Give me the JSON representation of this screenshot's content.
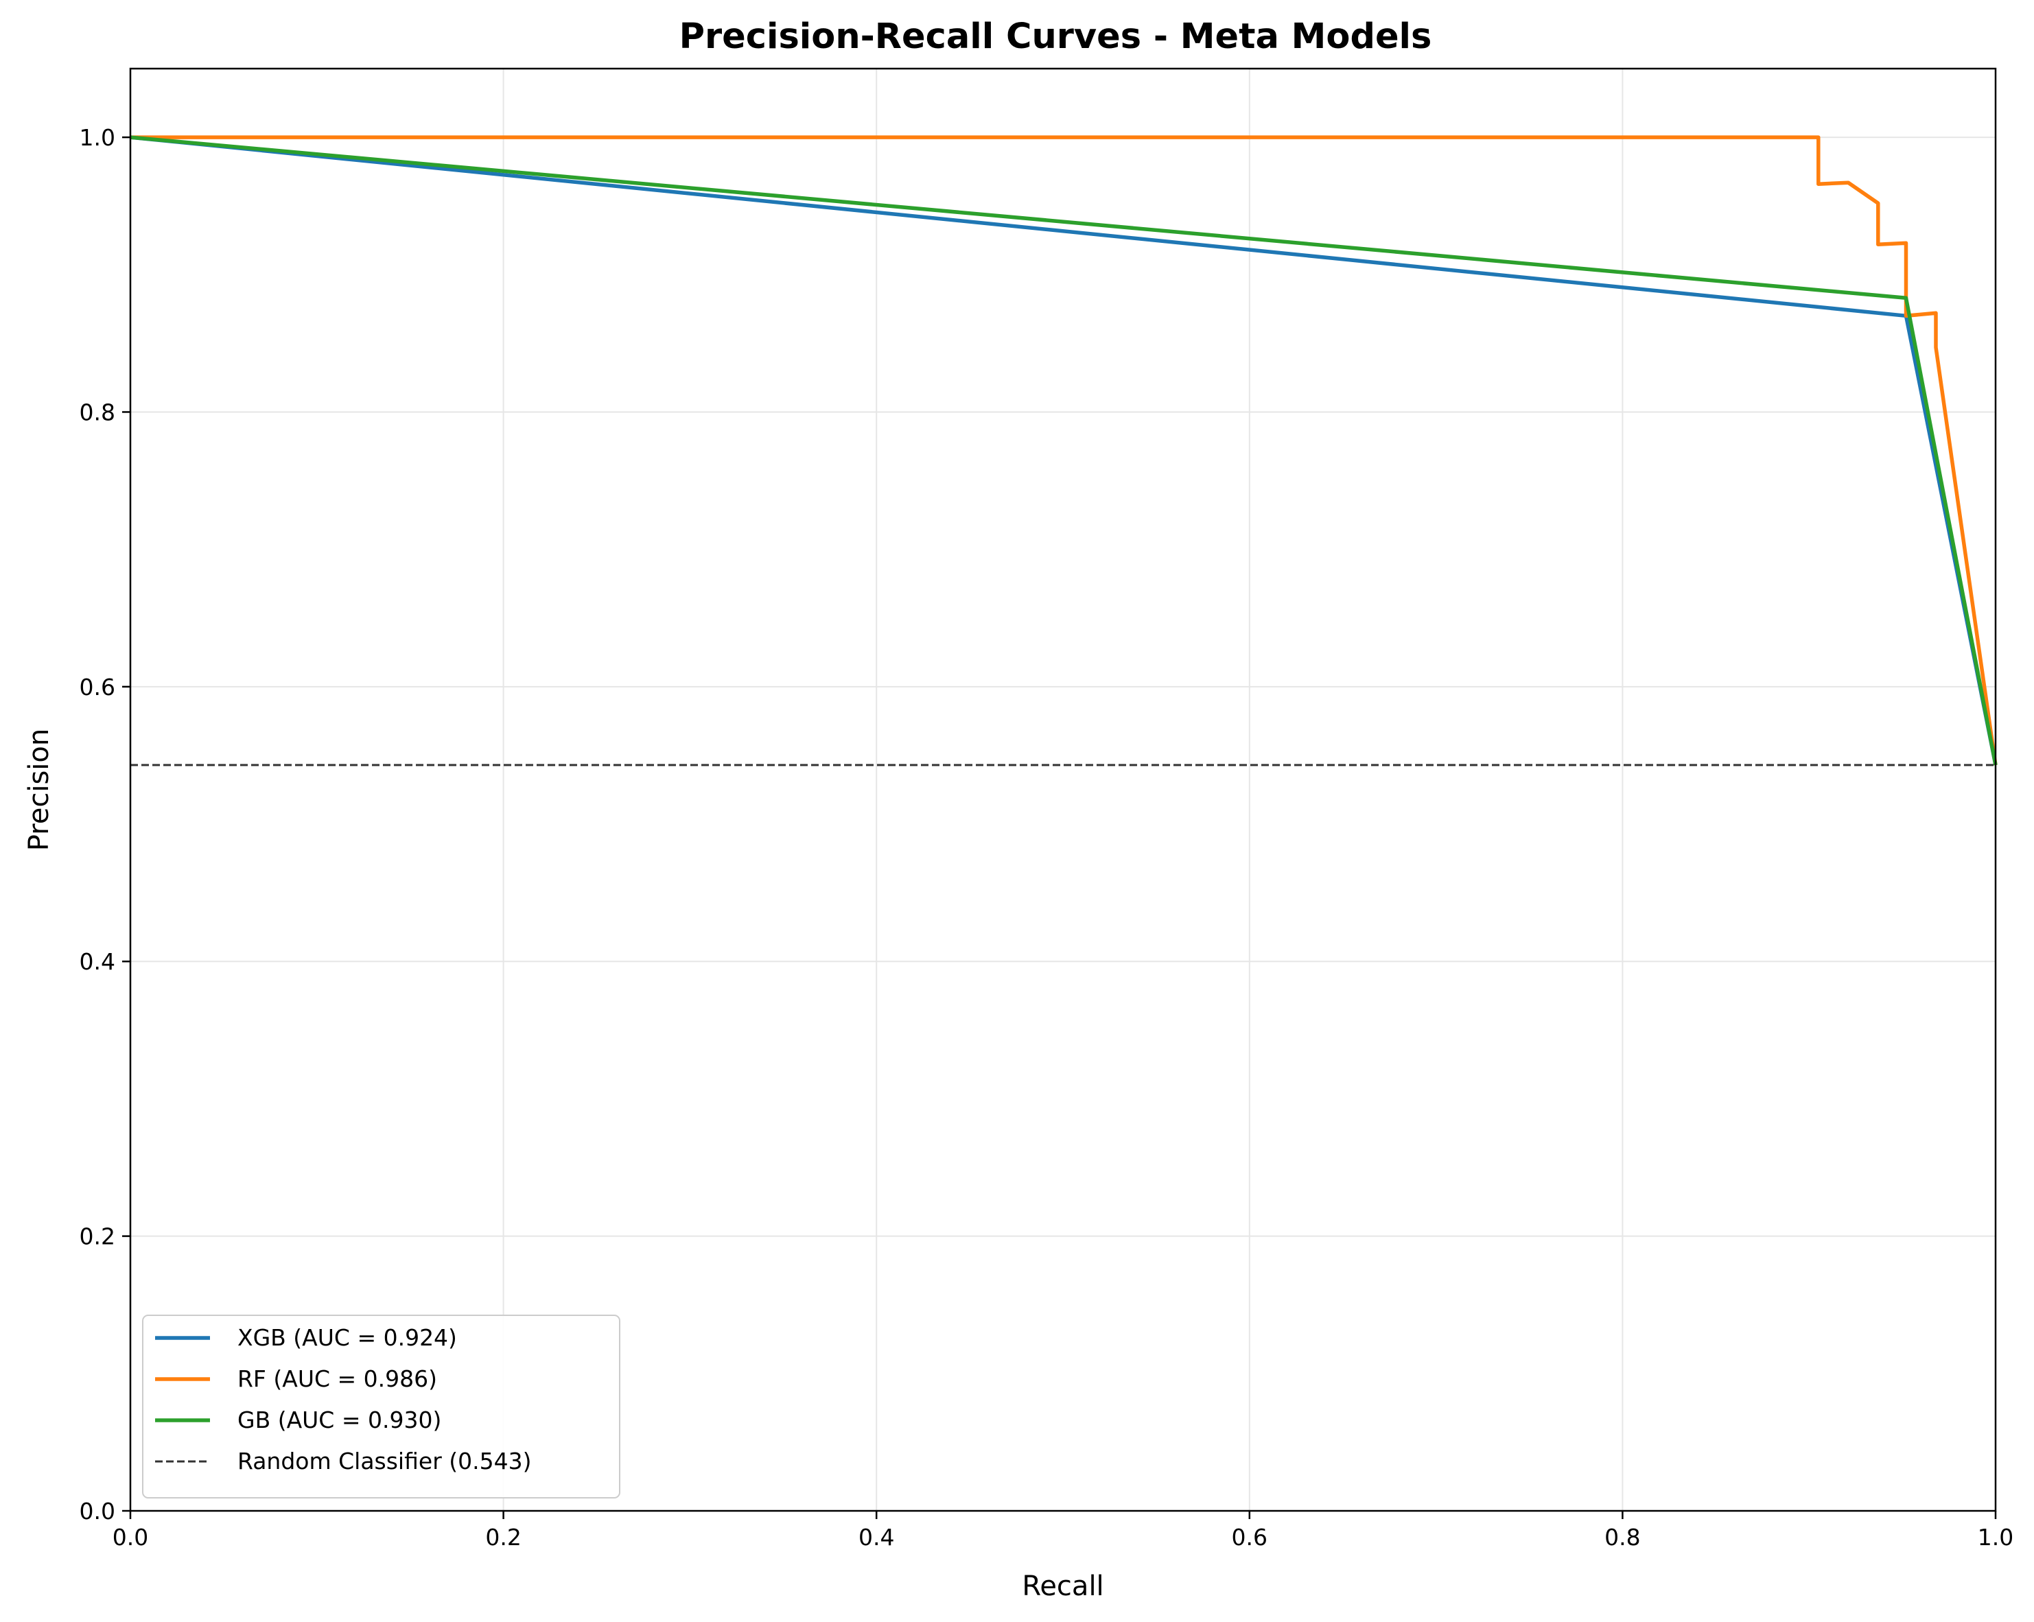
{
  "chart_data": {
    "type": "line",
    "title": "Precision-Recall Curves - Meta Models",
    "xlabel": "Recall",
    "ylabel": "Precision",
    "xlim": [
      0,
      1
    ],
    "ylim": [
      0,
      1.05
    ],
    "xticks": [
      0.0,
      0.2,
      0.4,
      0.6,
      0.8,
      1.0
    ],
    "yticks": [
      0.0,
      0.2,
      0.4,
      0.6,
      0.8,
      1.0
    ],
    "xtick_labels": [
      "0.0",
      "0.2",
      "0.4",
      "0.6",
      "0.8",
      "1.0"
    ],
    "ytick_labels": [
      "0.0",
      "0.2",
      "0.4",
      "0.6",
      "0.8",
      "1.0"
    ],
    "grid": true,
    "legend_position": "lower-left",
    "series": [
      {
        "name": "XGB (AUC = 0.924)",
        "color": "#1f77b4",
        "points": [
          [
            0.0,
            1.0
          ],
          [
            0.952,
            0.87
          ],
          [
            1.0,
            0.543
          ]
        ]
      },
      {
        "name": "RF (AUC = 0.986)",
        "color": "#ff7f0e",
        "points": [
          [
            0.0,
            1.0
          ],
          [
            0.905,
            1.0
          ],
          [
            0.905,
            0.966
          ],
          [
            0.921,
            0.967
          ],
          [
            0.937,
            0.952
          ],
          [
            0.937,
            0.922
          ],
          [
            0.952,
            0.923
          ],
          [
            0.952,
            0.87
          ],
          [
            0.968,
            0.872
          ],
          [
            0.968,
            0.847
          ],
          [
            1.0,
            0.543
          ]
        ]
      },
      {
        "name": "GB (AUC = 0.930)",
        "color": "#2ca02c",
        "points": [
          [
            0.0,
            1.0
          ],
          [
            0.952,
            0.883
          ],
          [
            1.0,
            0.543
          ]
        ]
      }
    ],
    "baseline": {
      "name": "Random Classifier (0.543)",
      "value": 0.543,
      "color": "#333333",
      "style": "dashed"
    }
  }
}
